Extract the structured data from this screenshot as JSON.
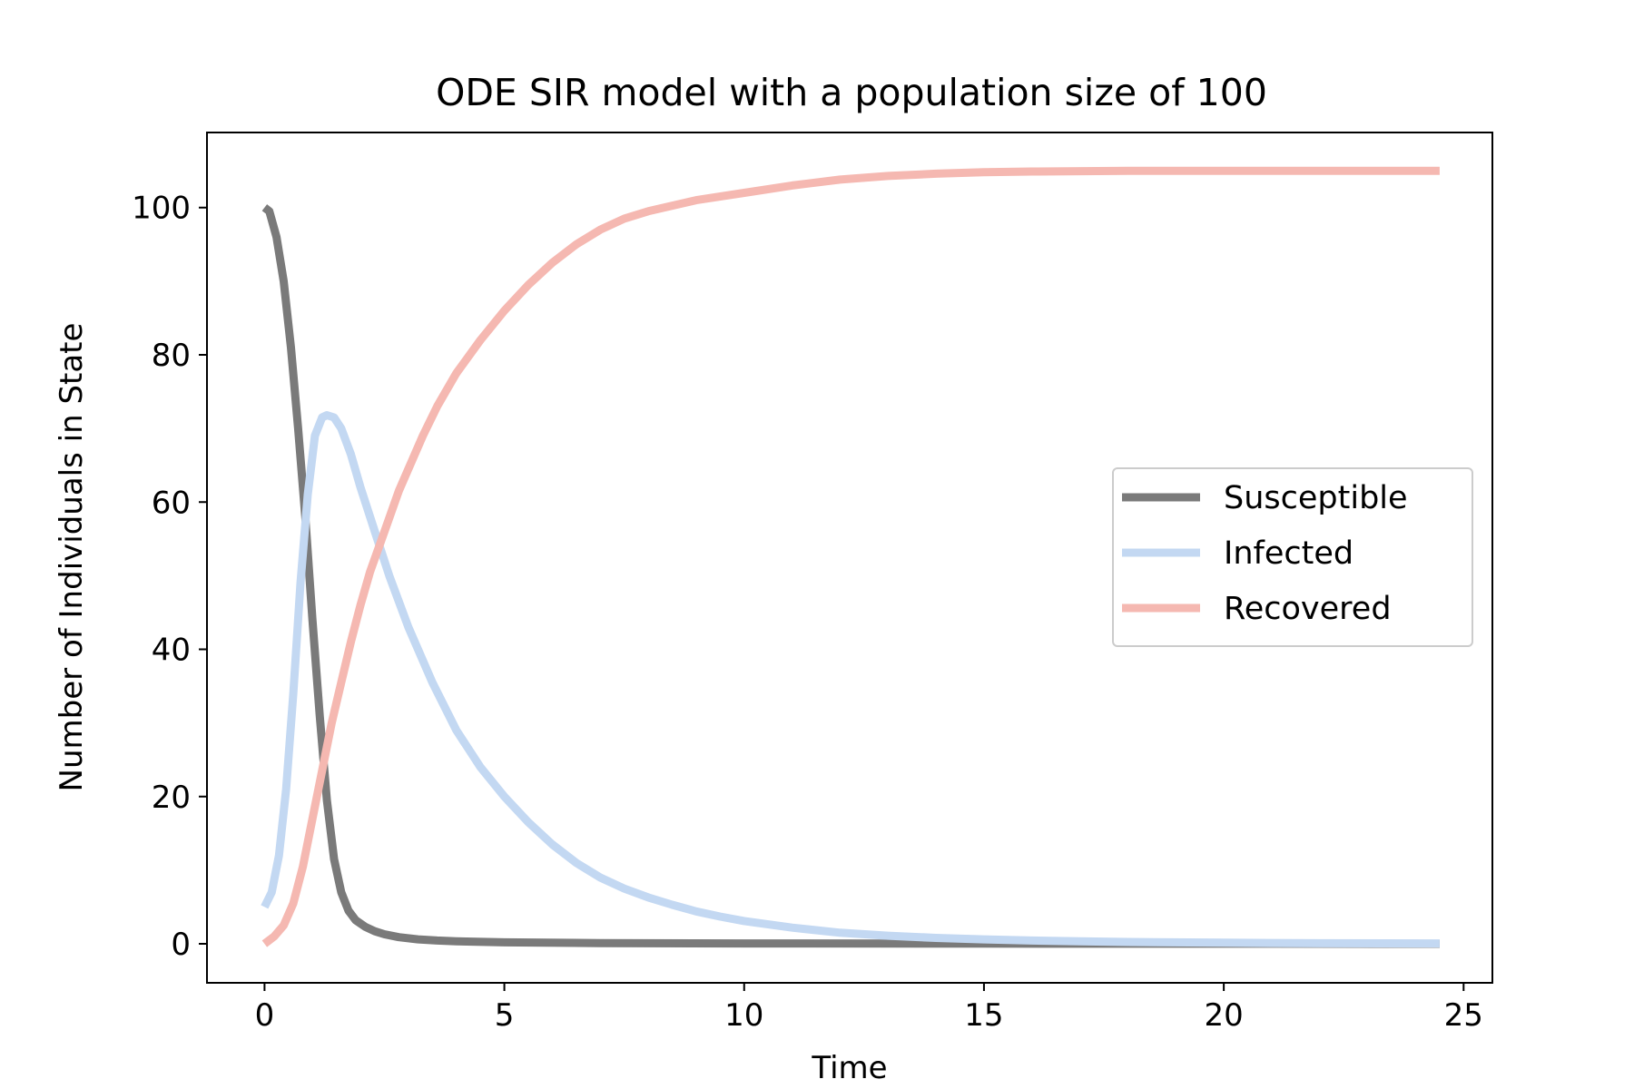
{
  "chart_data": {
    "type": "line",
    "title": "ODE SIR model with a population size of 100",
    "xlabel": "Time",
    "ylabel": "Number of Individuals in State",
    "xlim": [
      -1.2,
      25.6
    ],
    "ylim": [
      -5.3,
      110.2
    ],
    "xticks": [
      "0",
      "5",
      "10",
      "15",
      "20",
      "25"
    ],
    "xtick_values": [
      0,
      5,
      10,
      15,
      20,
      25
    ],
    "yticks": [
      "0",
      "20",
      "40",
      "60",
      "80",
      "100"
    ],
    "ytick_values": [
      0,
      20,
      40,
      60,
      80,
      100
    ],
    "grid": false,
    "legend_position": "center-right",
    "series": [
      {
        "name": "Susceptible",
        "color": "#7a7a7a",
        "x": [
          0,
          0.1,
          0.25,
          0.4,
          0.55,
          0.7,
          0.85,
          1.0,
          1.15,
          1.3,
          1.45,
          1.6,
          1.75,
          1.9,
          2.1,
          2.3,
          2.5,
          2.8,
          3.2,
          3.6,
          4.0,
          5,
          7,
          10,
          15,
          20,
          24.5
        ],
        "y": [
          100,
          99.5,
          96,
          90,
          81,
          70,
          58,
          44,
          31,
          19.5,
          11.5,
          7,
          4.5,
          3.2,
          2.3,
          1.7,
          1.3,
          0.9,
          0.6,
          0.45,
          0.35,
          0.2,
          0.1,
          0.05,
          0.02,
          0.01,
          0
        ]
      },
      {
        "name": "Infected",
        "color": "#c3d8f2",
        "x": [
          0,
          0.15,
          0.3,
          0.45,
          0.6,
          0.75,
          0.9,
          1.05,
          1.2,
          1.3,
          1.45,
          1.6,
          1.8,
          2.0,
          2.3,
          2.6,
          3.0,
          3.5,
          4.0,
          4.5,
          5,
          5.5,
          6,
          6.5,
          7,
          7.5,
          8,
          8.5,
          9,
          9.5,
          10,
          11,
          12,
          13,
          14,
          15,
          16,
          17,
          18,
          20,
          22,
          24.5
        ],
        "y": [
          5,
          7,
          12,
          21,
          34,
          49,
          61,
          69,
          71.5,
          71.8,
          71.5,
          70,
          66.5,
          62,
          56,
          50,
          43,
          35.5,
          29,
          24,
          20,
          16.5,
          13.5,
          11,
          9,
          7.5,
          6.3,
          5.3,
          4.4,
          3.7,
          3.1,
          2.2,
          1.5,
          1.1,
          0.8,
          0.6,
          0.45,
          0.35,
          0.25,
          0.15,
          0.08,
          0.05
        ]
      },
      {
        "name": "Recovered",
        "color": "#f5b8b1",
        "x": [
          0,
          0.2,
          0.4,
          0.6,
          0.8,
          1.0,
          1.2,
          1.4,
          1.6,
          1.8,
          2.0,
          2.2,
          2.5,
          2.8,
          3.0,
          3.3,
          3.6,
          4.0,
          4.5,
          5,
          5.5,
          6,
          6.5,
          7,
          7.5,
          8,
          9,
          10,
          11,
          12,
          13,
          14,
          15,
          16,
          18,
          20,
          22,
          24.5
        ],
        "y": [
          0,
          1,
          2.5,
          5.5,
          10.5,
          17,
          23.5,
          30,
          35.5,
          41,
          46,
          50.5,
          56,
          61.5,
          64.5,
          69,
          73,
          77.5,
          82,
          86,
          89.5,
          92.5,
          95,
          97,
          98.5,
          99.5,
          101,
          102,
          103,
          103.8,
          104.3,
          104.6,
          104.8,
          104.9,
          105,
          105,
          105,
          105
        ]
      }
    ]
  }
}
